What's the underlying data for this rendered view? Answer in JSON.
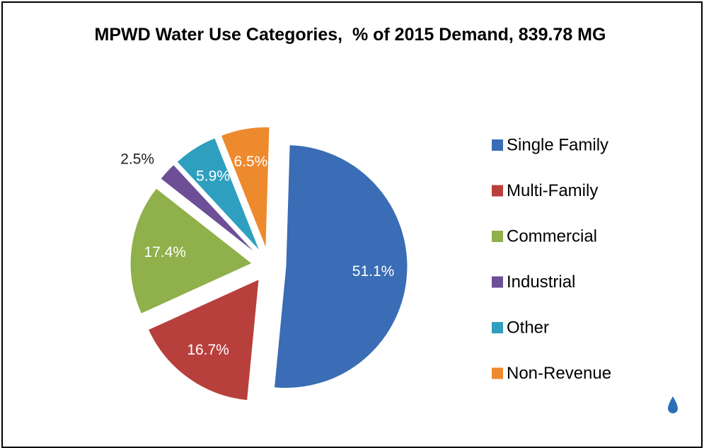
{
  "chart_data": {
    "type": "pie",
    "title": "MPWD Water Use Categories,  % of 2015 Demand, 839.78 MG",
    "categories": [
      "Single Family",
      "Multi-Family",
      "Commercial",
      "Industrial",
      "Other",
      "Non-Revenue"
    ],
    "values": [
      51.1,
      16.7,
      17.4,
      2.5,
      5.9,
      6.5
    ],
    "value_labels": [
      "51.1%",
      "16.7%",
      "17.4%",
      "2.5%",
      "5.9%",
      "6.5%"
    ],
    "colors": [
      "#3a6db5",
      "#b8403c",
      "#8fb04a",
      "#6c4f96",
      "#2e9fbf",
      "#ed8a2e"
    ],
    "legend": "right"
  }
}
